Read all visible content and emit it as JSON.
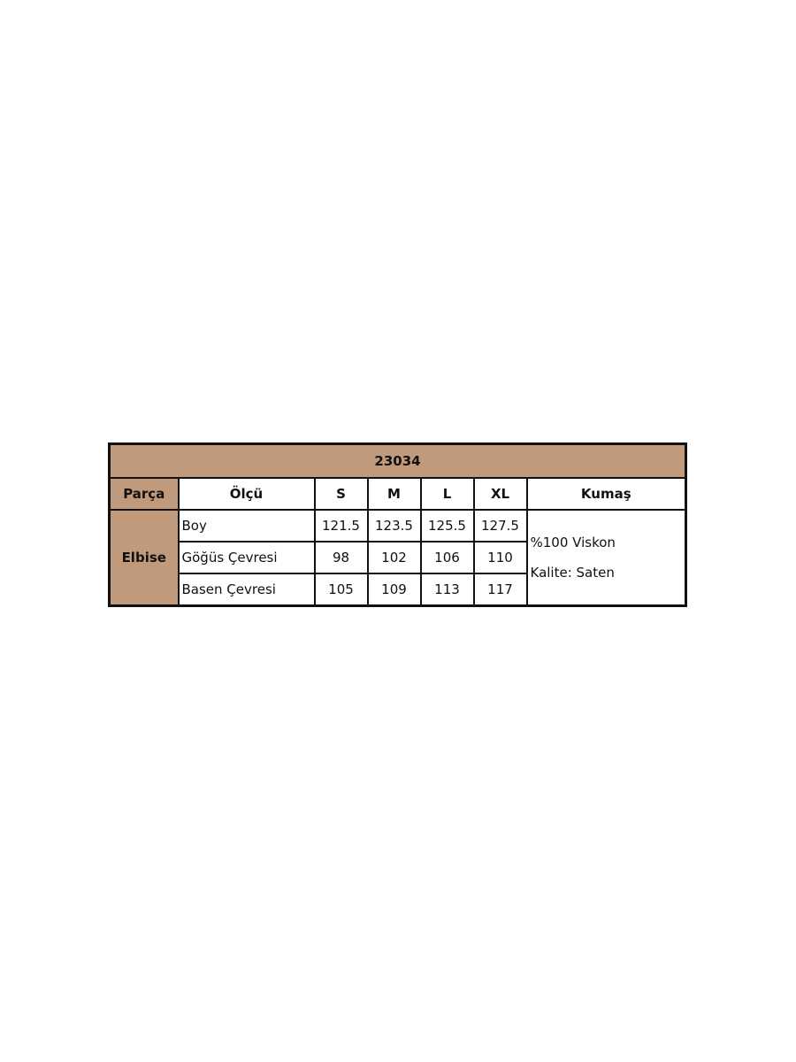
{
  "table": {
    "title": "23034",
    "headers": [
      "Parça",
      "Ölçü",
      "S",
      "M",
      "L",
      "XL",
      "Kumaş"
    ],
    "part": "Elbise",
    "rows": [
      {
        "label": "Boy",
        "values": [
          "121.5",
          "123.5",
          "125.5",
          "127.5"
        ]
      },
      {
        "label": "Göğüs Çevresi",
        "values": [
          "98",
          "102",
          "106",
          "110"
        ]
      },
      {
        "label": "Basen Çevresi",
        "values": [
          "105",
          "109",
          "113",
          "117"
        ]
      }
    ],
    "fabric": [
      "%100 Viskon",
      "Kalite: Saten"
    ]
  },
  "colors": {
    "header_fill": "#c09a7a",
    "border": "#111111"
  }
}
